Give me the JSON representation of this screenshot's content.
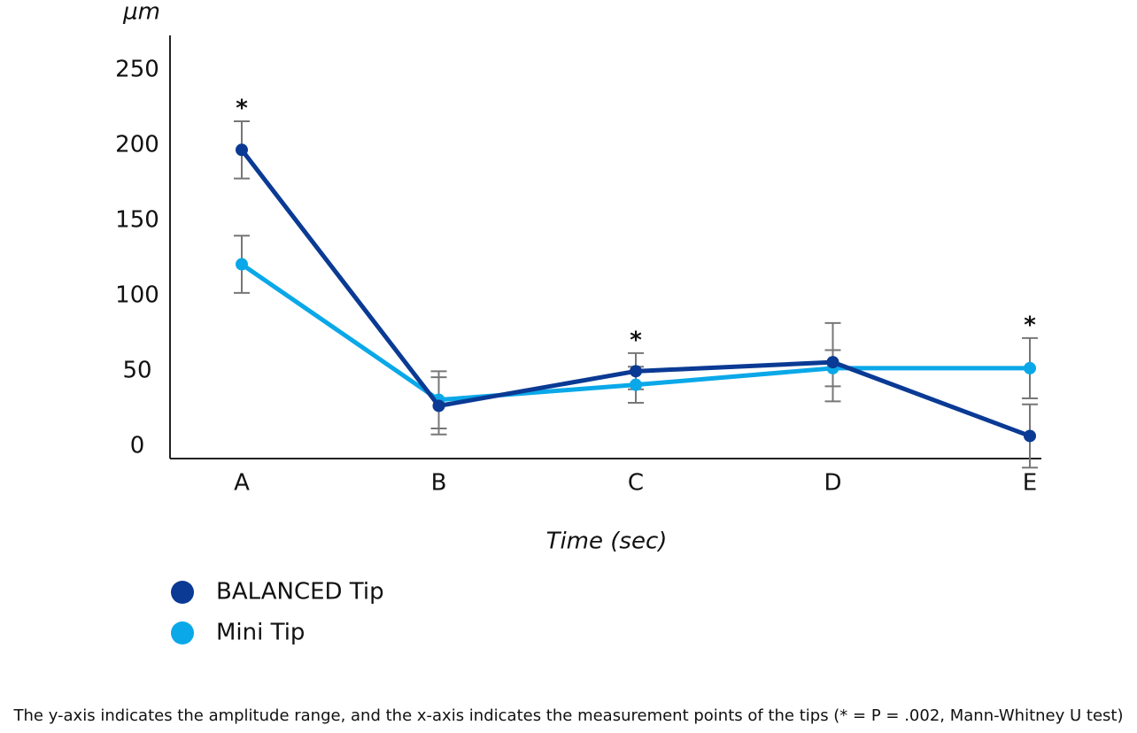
{
  "chart_data": {
    "type": "line",
    "y_label": "μm",
    "x_label": "Time (sec)",
    "categories": [
      "A",
      "B",
      "C",
      "D",
      "E"
    ],
    "series": [
      {
        "name": "BALANCED Tip",
        "color": "#0a3a94",
        "values": [
          201,
          31,
          54,
          60,
          11
        ],
        "errors": [
          19,
          19,
          12,
          26,
          21
        ]
      },
      {
        "name": "Mini Tip",
        "color": "#0aa8e8",
        "values": [
          125,
          35,
          45,
          56,
          56
        ],
        "errors": [
          19,
          19,
          12,
          12,
          20
        ]
      }
    ],
    "error_color": "#777777",
    "significant": [
      "A",
      "C",
      "E"
    ],
    "significance_label": "*",
    "ylim": [
      -4,
      277
    ],
    "yticks": [
      0,
      50,
      100,
      150,
      200,
      250
    ],
    "grid": false,
    "caption": "The y-axis indicates the amplitude range, and the x-axis indicates the measurement points of the tips (* = P = .002, Mann-Whitney U test)"
  }
}
